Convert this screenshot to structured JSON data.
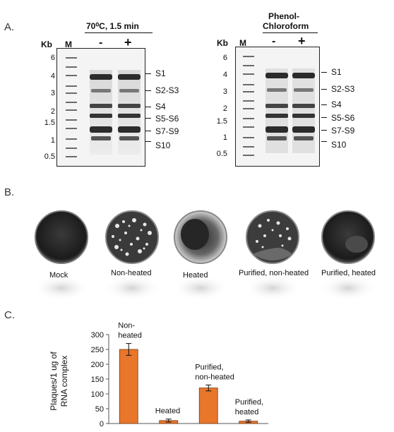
{
  "panelA": {
    "letter": "A.",
    "left_gel": {
      "title": "70⁰C, 1.5 min",
      "kb_label": "Kb",
      "marker_label": "M",
      "lane_minus": "-",
      "lane_plus": "+",
      "ladder": [
        "6",
        "4",
        "3",
        "2",
        "1.5",
        "1",
        "0.5"
      ],
      "segments": [
        "S1",
        "S2-S3",
        "S4",
        "S5-S6",
        "S7-S9",
        "S10"
      ]
    },
    "right_gel": {
      "title_line1": "Phenol-",
      "title_line2": "Chloroform",
      "kb_label": "Kb",
      "marker_label": "M",
      "lane_minus": "-",
      "lane_plus": "+",
      "ladder": [
        "6",
        "4",
        "3",
        "2",
        "1.5",
        "1",
        "0.5"
      ],
      "segments": [
        "S1",
        "S2-S3",
        "S4",
        "S5-S6",
        "S7-S9",
        "S10"
      ]
    }
  },
  "panelB": {
    "letter": "B.",
    "dishes": [
      "Mock",
      "Non-heated",
      "Heated",
      "Purified, non-heated",
      "Purified, heated"
    ]
  },
  "panelC": {
    "letter": "C.",
    "chart_data": {
      "type": "bar",
      "categories": [
        "Non-heated",
        "Heated",
        "Purified, non-heated",
        "Purified, heated"
      ],
      "bar_labels": [
        [
          "Non-",
          "heated"
        ],
        [
          "Heated"
        ],
        [
          "Purified,",
          "non-heated"
        ],
        [
          "Purified,",
          "heated"
        ]
      ],
      "values": [
        250,
        10,
        120,
        8
      ],
      "errors": [
        20,
        5,
        10,
        4
      ],
      "ylabel_line1": "Plaques/1 ug of",
      "ylabel_line2": "RNA complex",
      "yticks": [
        "0",
        "50",
        "100",
        "150",
        "200",
        "250",
        "300"
      ],
      "ylim": [
        0,
        300
      ],
      "bar_color": "#E8762B"
    }
  }
}
